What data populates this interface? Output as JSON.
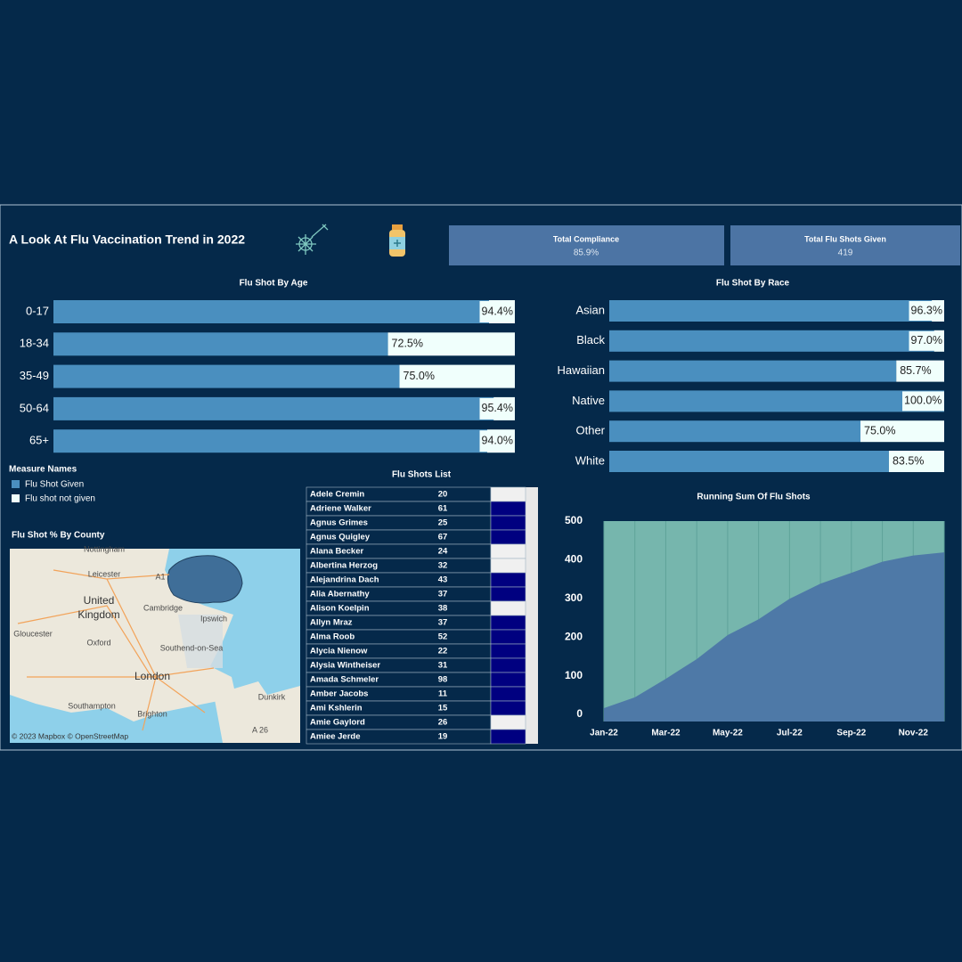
{
  "header": {
    "title": "A Look At Flu Vaccination Trend in 2022"
  },
  "kpis": [
    {
      "label": "Total Compliance",
      "value": "85.9%"
    },
    {
      "label": "Total Flu Shots Given",
      "value": "419"
    }
  ],
  "chart_data": [
    {
      "type": "bar",
      "orientation": "horizontal",
      "title": "Flu Shot By Age",
      "categories": [
        "0-17",
        "18-34",
        "35-49",
        "50-64",
        "65+"
      ],
      "series": [
        {
          "name": "Flu Shot Given",
          "color": "#4a8fbf",
          "values": [
            94.4,
            72.5,
            75.0,
            95.4,
            94.0
          ],
          "value_labels": [
            "94.4%",
            "72.5%",
            "75.0%",
            "95.4%",
            "94.0%"
          ]
        },
        {
          "name": "Flu shot not given",
          "color": "#f0fffc",
          "values": [
            5.6,
            27.5,
            25.0,
            4.6,
            6.0
          ]
        }
      ],
      "xlim": [
        0,
        100
      ],
      "legend_title": "Measure Names"
    },
    {
      "type": "bar",
      "orientation": "horizontal",
      "title": "Flu Shot By Race",
      "categories": [
        "Asian",
        "Black",
        "Hawaiian",
        "Native",
        "Other",
        "White"
      ],
      "series": [
        {
          "color": "#4a8fbf",
          "values": [
            96.3,
            97.0,
            85.7,
            100.0,
            75.0,
            83.5
          ],
          "value_labels": [
            "96.3%",
            "97.0%",
            "85.7%",
            "100.0%",
            "75.0%",
            "83.5%"
          ]
        },
        {
          "color": "#f0fffc",
          "values": [
            3.7,
            3.0,
            14.3,
            0,
            25.0,
            16.5
          ]
        }
      ],
      "xlim": [
        0,
        100
      ]
    },
    {
      "type": "area",
      "title": "Running Sum Of Flu Shots",
      "categories": [
        "Jan-22",
        null,
        "Mar-22",
        null,
        "May-22",
        null,
        "Jul-22",
        null,
        "Sep-22",
        null,
        "Nov-22",
        null
      ],
      "values": [
        16,
        44,
        92,
        143,
        205,
        246,
        299,
        338,
        366,
        395,
        411,
        419
      ],
      "color": "#4e79a7",
      "background": "#76b6ad",
      "ylim": [
        0,
        500
      ],
      "yticks": [
        0,
        100,
        200,
        300,
        400,
        500
      ],
      "grid": true
    }
  ],
  "table": {
    "title": "Flu Shots List",
    "rows": [
      [
        "Adele Cremin",
        "20"
      ],
      [
        "Adriene Walker",
        "61"
      ],
      [
        "Agnus Grimes",
        "25"
      ],
      [
        "Agnus Quigley",
        "67"
      ],
      [
        "Alana Becker",
        "24"
      ],
      [
        "Albertina Herzog",
        "32"
      ],
      [
        "Alejandrina Dach",
        "43"
      ],
      [
        "Alia Abernathy",
        "37"
      ],
      [
        "Alison Koelpin",
        "38"
      ],
      [
        "Allyn Mraz",
        "37"
      ],
      [
        "Alma Roob",
        "52"
      ],
      [
        "Alycia Nienow",
        "22"
      ],
      [
        "Alysia Wintheiser",
        "31"
      ],
      [
        "Amada Schmeler",
        "98"
      ],
      [
        "Amber Jacobs",
        "11"
      ],
      [
        "Ami Kshlerin",
        "15"
      ],
      [
        "Amie Gaylord",
        "26"
      ],
      [
        "Amiee Jerde",
        "19"
      ]
    ],
    "cell_colors": [
      "#f0f0f0",
      "#000080",
      "#000080",
      "#000080",
      "#f0f0f0",
      "#f0f0f0",
      "#000080",
      "#000080",
      "#f0f0f0",
      "#000080",
      "#000080",
      "#000080",
      "#000080",
      "#000080",
      "#000080",
      "#000080",
      "#f0f0f0",
      "#000080"
    ]
  },
  "map": {
    "title": "Flu Shot % By County",
    "labels": [
      "Nottingham",
      "Leicester",
      "United",
      "Kingdom",
      "Cambridge",
      "Ipswich",
      "Gloucester",
      "Oxford",
      "London",
      "Southend-on-Sea",
      "Southampton",
      "Brighton",
      "Dunkirk",
      "A1",
      "A 26"
    ],
    "attribution": "© 2023 Mapbox © OpenStreetMap"
  }
}
